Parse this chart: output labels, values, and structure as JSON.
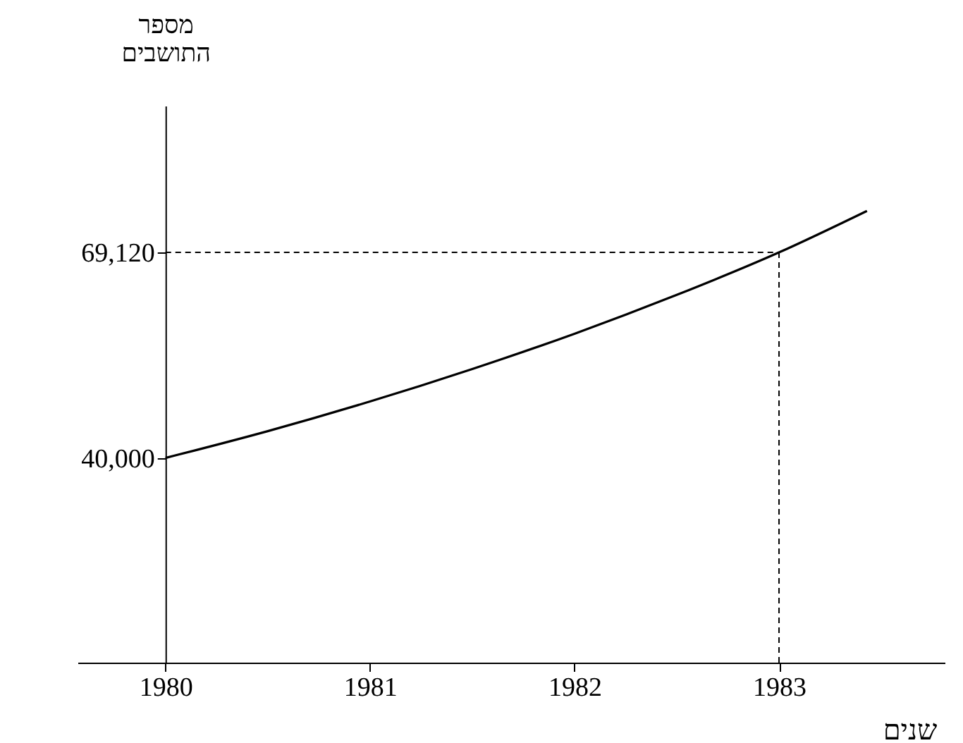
{
  "chart_data": {
    "type": "line",
    "xlabel": "שנים",
    "ylabel": "מספר התושבים",
    "x": [
      1980,
      1980.5,
      1981,
      1981.5,
      1982,
      1982.5,
      1983,
      1983.43
    ],
    "series": [
      {
        "color": "#000000",
        "values": [
          40000,
          43800,
          48000,
          52600,
          57600,
          63100,
          69120,
          75000
        ]
      }
    ],
    "xlim": [
      1979.57,
      1983.81
    ],
    "ylim": [
      11000,
      89900
    ],
    "xticks": [
      1980,
      1981,
      1982,
      1983
    ],
    "yticks": [
      {
        "value": 40000,
        "label": "40,000"
      },
      {
        "value": 69120,
        "label": "69,120"
      }
    ],
    "ref_lines": [
      {
        "axis": "y",
        "value": 69120,
        "line_style": "dashed"
      },
      {
        "axis": "x",
        "value": 1983,
        "line_style": "dashed"
      }
    ],
    "grid": false,
    "marker": "none",
    "line_style": "solid"
  }
}
